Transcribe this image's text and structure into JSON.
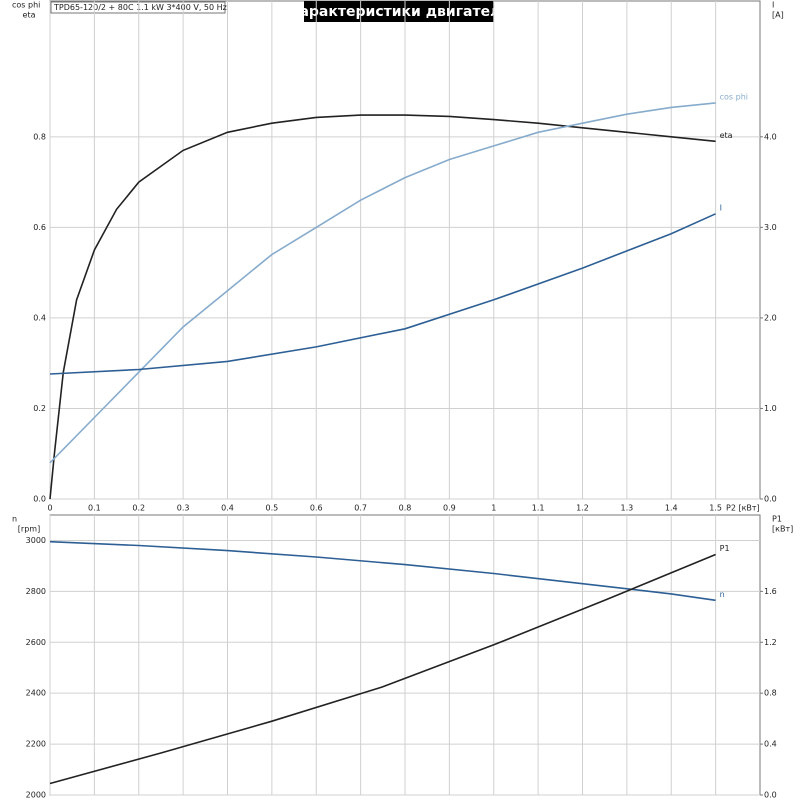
{
  "chart_data": [
    {
      "type": "line",
      "title": "Характеристики двигателя",
      "subtitle": "TPD65-120/2 + 80C   1.1 kW   3*400 V, 50 Hz",
      "xlabel": "P2 [кВт]",
      "ylabel": [
        "cos phi",
        "eta"
      ],
      "y2label": [
        "I",
        "[A]"
      ],
      "xlim": [
        0,
        1.6
      ],
      "xticks": [
        0,
        0.1,
        0.2,
        0.3,
        0.4,
        0.5,
        0.6,
        0.7,
        0.8,
        0.9,
        1.0,
        1.1,
        1.2,
        1.3,
        1.4,
        1.5
      ],
      "ylim": [
        0,
        1.1
      ],
      "yticks": [
        {
          "value": 0,
          "label": "0.0"
        },
        0.2,
        0.4,
        0.6,
        0.8
      ],
      "y2lim": [
        0,
        5.5
      ],
      "y2ticks": [
        {
          "value": 0,
          "label": "0.0"
        },
        {
          "value": 1,
          "label": "1.0"
        },
        {
          "value": 2,
          "label": "2.0"
        },
        {
          "value": 3,
          "label": "3.0"
        },
        {
          "value": 4,
          "label": "4.0"
        }
      ],
      "grid": true,
      "series": [
        {
          "name": "eta",
          "color": "#222222",
          "x": [
            0,
            0.01,
            0.03,
            0.06,
            0.1,
            0.15,
            0.2,
            0.3,
            0.4,
            0.5,
            0.6,
            0.7,
            0.8,
            0.9,
            1.0,
            1.1,
            1.2,
            1.3,
            1.4,
            1.5
          ],
          "values": [
            0,
            0.1,
            0.28,
            0.44,
            0.55,
            0.64,
            0.7,
            0.77,
            0.81,
            0.83,
            0.843,
            0.848,
            0.848,
            0.845,
            0.838,
            0.83,
            0.82,
            0.81,
            0.8,
            0.79
          ]
        },
        {
          "name": "cos phi",
          "color": "#86abcc",
          "x": [
            0,
            0.1,
            0.2,
            0.3,
            0.4,
            0.5,
            0.6,
            0.7,
            0.8,
            0.9,
            1.0,
            1.1,
            1.2,
            1.3,
            1.4,
            1.5
          ],
          "values": [
            0.08,
            0.18,
            0.28,
            0.38,
            0.46,
            0.54,
            0.6,
            0.66,
            0.71,
            0.75,
            0.78,
            0.81,
            0.83,
            0.85,
            0.865,
            0.875
          ]
        },
        {
          "name": "I",
          "color": "#2d5f95",
          "axis": "y2",
          "x": [
            0,
            0.2,
            0.4,
            0.6,
            0.8,
            1.0,
            1.2,
            1.4,
            1.5
          ],
          "values": [
            1.38,
            1.43,
            1.52,
            1.68,
            1.88,
            2.2,
            2.55,
            2.93,
            3.15
          ]
        }
      ]
    },
    {
      "type": "line",
      "ylabel": [
        "n",
        "[rpm]"
      ],
      "y2label": [
        "P1",
        "[кВт]"
      ],
      "xlim": [
        0,
        1.6
      ],
      "ylim": [
        2000,
        3100
      ],
      "yticks": [
        2000,
        2200,
        2400,
        2600,
        2800,
        3000
      ],
      "y2lim": [
        0,
        2.2
      ],
      "y2ticks": [
        {
          "value": 0,
          "label": "0.0"
        },
        0.4,
        0.8,
        1.2,
        1.6
      ],
      "grid": true,
      "series": [
        {
          "name": "n",
          "color": "#2d5f95",
          "x": [
            0,
            0.2,
            0.4,
            0.6,
            0.8,
            1.0,
            1.2,
            1.4,
            1.5
          ],
          "values": [
            2995,
            2980,
            2960,
            2935,
            2905,
            2870,
            2830,
            2790,
            2765
          ]
        },
        {
          "name": "P1",
          "color": "#222222",
          "axis": "y2",
          "x": [
            0,
            0.25,
            0.5,
            0.75,
            1.0,
            1.25,
            1.5
          ],
          "values": [
            0.09,
            0.33,
            0.58,
            0.85,
            1.18,
            1.53,
            1.89
          ]
        }
      ]
    }
  ]
}
